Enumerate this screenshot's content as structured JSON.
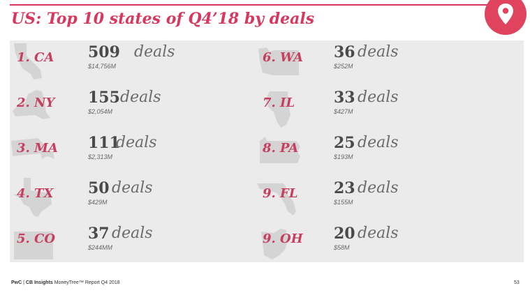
{
  "title": "US: Top 10 states of Q4’18 by deals",
  "deals_label": "deals",
  "colors": {
    "accent": "#d9385e",
    "rank_text": "#c83e5e",
    "panel_bg": "#ebebeb",
    "state_shape": "#d4d4d4"
  },
  "icons": {
    "badge": "location-pin-icon"
  },
  "left_column": [
    {
      "rank_label": "1. CA",
      "deals": "509",
      "amount": "$14,756M"
    },
    {
      "rank_label": "2. NY",
      "deals": "155",
      "amount": "$2,054M"
    },
    {
      "rank_label": "3. MA",
      "deals": "111",
      "amount": "$2,313M"
    },
    {
      "rank_label": "4. TX",
      "deals": "50",
      "amount": "$429M"
    },
    {
      "rank_label": "5. CO",
      "deals": "37",
      "amount": "$244MM"
    }
  ],
  "right_column": [
    {
      "rank_label": "6. WA",
      "deals": "36",
      "amount": "$252M"
    },
    {
      "rank_label": "7. IL",
      "deals": "33",
      "amount": "$427M"
    },
    {
      "rank_label": "8. PA",
      "deals": "25",
      "amount": "$193M"
    },
    {
      "rank_label": "9. FL",
      "deals": "23",
      "amount": "$155M"
    },
    {
      "rank_label": "9. OH",
      "deals": "20",
      "amount": "$58M"
    }
  ],
  "footer": {
    "brand_pwc": "PwC",
    "separator": "|",
    "brand_cb": "CB Insights",
    "report": "MoneyTree™ Report Q4 2018",
    "page": "53"
  }
}
